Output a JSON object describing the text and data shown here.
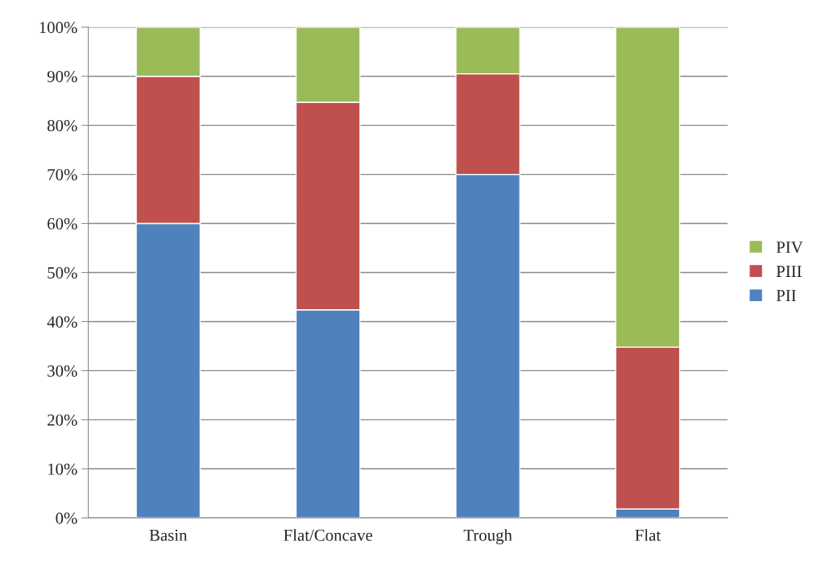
{
  "chart_data": {
    "type": "bar",
    "stacked": true,
    "categories": [
      "Basin",
      "Flat/Concave",
      "Trough",
      "Flat"
    ],
    "series": [
      {
        "name": "PII",
        "color": "#4f81bd",
        "values": [
          60,
          42.4,
          70,
          1.8
        ]
      },
      {
        "name": "PIII",
        "color": "#c0504d",
        "values": [
          30,
          42.3,
          20.5,
          33.0
        ]
      },
      {
        "name": "PIV",
        "color": "#9bbb59",
        "values": [
          10,
          15.3,
          9.5,
          65.2
        ]
      }
    ],
    "ylim": [
      0,
      100
    ],
    "yticks": [
      {
        "value": 0,
        "label": "0%"
      },
      {
        "value": 10,
        "label": "10%"
      },
      {
        "value": 20,
        "label": "20%"
      },
      {
        "value": 30,
        "label": "30%"
      },
      {
        "value": 40,
        "label": "40%"
      },
      {
        "value": 50,
        "label": "50%"
      },
      {
        "value": 60,
        "label": "60%"
      },
      {
        "value": 70,
        "label": "70%"
      },
      {
        "value": 80,
        "label": "80%"
      },
      {
        "value": 90,
        "label": "90%"
      },
      {
        "value": 100,
        "label": "100%"
      }
    ],
    "grid": "y",
    "legend": "right"
  }
}
